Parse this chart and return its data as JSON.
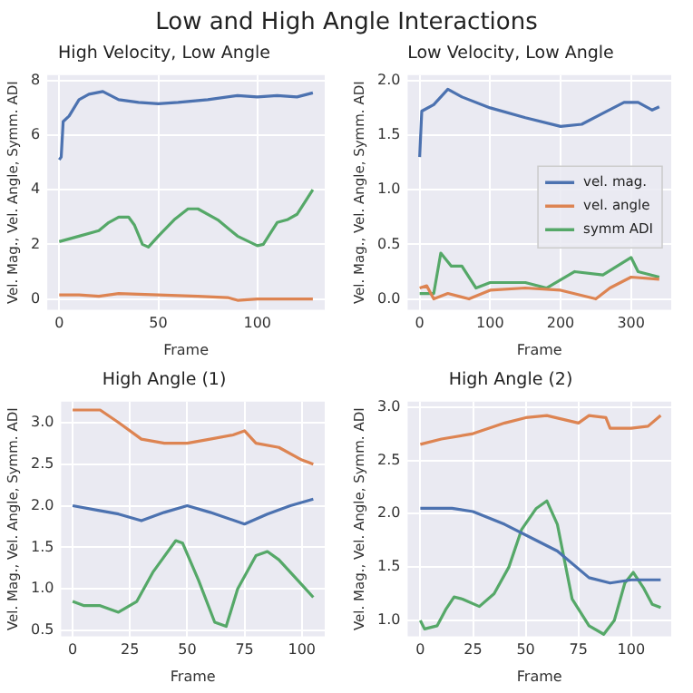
{
  "chart_data": [
    {
      "type": "line",
      "title": "High Velocity, Low Angle",
      "xlabel": "Frame",
      "ylabel": "Vel. Mag., Vel. Angle, Symm. ADI",
      "annotations": [
        "Low and High Angle Interactions"
      ],
      "xlim": [
        -6,
        134
      ],
      "xticks": [
        0,
        50,
        100
      ],
      "ylim": [
        -0.4,
        8.2
      ],
      "yticks": [
        0,
        2,
        4,
        6,
        8
      ],
      "grid": true,
      "marker": "none",
      "line_style": "solid",
      "series": [
        {
          "color": "#4c72b0",
          "x": [
            0,
            1,
            2,
            5,
            10,
            15,
            22,
            30,
            40,
            50,
            60,
            75,
            90,
            100,
            110,
            120,
            128
          ],
          "values": [
            5.1,
            5.2,
            6.5,
            6.7,
            7.3,
            7.5,
            7.6,
            7.3,
            7.2,
            7.15,
            7.2,
            7.3,
            7.45,
            7.4,
            7.45,
            7.4,
            7.55
          ]
        },
        {
          "color": "#dd8452",
          "x": [
            0,
            10,
            20,
            30,
            50,
            70,
            85,
            90,
            100,
            128
          ],
          "values": [
            0.15,
            0.15,
            0.1,
            0.2,
            0.15,
            0.1,
            0.05,
            -0.05,
            0,
            0
          ]
        },
        {
          "color": "#55a868",
          "x": [
            0,
            5,
            10,
            20,
            25,
            30,
            35,
            38,
            42,
            45,
            50,
            58,
            65,
            70,
            80,
            90,
            100,
            103,
            110,
            115,
            120,
            128
          ],
          "values": [
            2.1,
            2.2,
            2.3,
            2.5,
            2.8,
            3.0,
            3.0,
            2.7,
            2.0,
            1.9,
            2.3,
            2.9,
            3.3,
            3.3,
            2.9,
            2.3,
            1.95,
            2.0,
            2.8,
            2.9,
            3.1,
            4.0
          ]
        }
      ]
    },
    {
      "type": "line",
      "title": "Low Velocity, Low Angle",
      "xlabel": "Frame",
      "ylabel": "Vel. Mag., Vel. Angle, Symm. ADI",
      "xlim": [
        -17,
        357
      ],
      "xticks": [
        0,
        100,
        200,
        300
      ],
      "ylim": [
        -0.1,
        2.05
      ],
      "yticks": [
        {
          "value": 0,
          "label": "0.0"
        },
        0.5,
        {
          "value": 1,
          "label": "1.0"
        },
        1.5,
        {
          "value": 2,
          "label": "2.0"
        }
      ],
      "grid": true,
      "legend": "right",
      "marker": "none",
      "line_style": "solid",
      "series": [
        {
          "name": "vel. mag.",
          "color": "#4c72b0",
          "x": [
            0,
            3,
            20,
            40,
            60,
            100,
            150,
            200,
            230,
            260,
            290,
            310,
            330,
            340
          ],
          "values": [
            1.3,
            1.72,
            1.78,
            1.92,
            1.85,
            1.75,
            1.66,
            1.58,
            1.6,
            1.7,
            1.8,
            1.8,
            1.73,
            1.76
          ]
        },
        {
          "name": "vel. angle",
          "color": "#dd8452",
          "x": [
            0,
            10,
            20,
            40,
            70,
            100,
            150,
            200,
            250,
            270,
            300,
            340
          ],
          "values": [
            0.1,
            0.12,
            0.0,
            0.05,
            0.0,
            0.08,
            0.1,
            0.08,
            0.0,
            0.1,
            0.2,
            0.18
          ]
        },
        {
          "name": "symm ADI",
          "color": "#55a868",
          "x": [
            0,
            20,
            30,
            45,
            60,
            80,
            100,
            150,
            180,
            220,
            260,
            300,
            310,
            340
          ],
          "values": [
            0.05,
            0.05,
            0.42,
            0.3,
            0.3,
            0.1,
            0.15,
            0.15,
            0.1,
            0.25,
            0.22,
            0.38,
            0.25,
            0.2
          ]
        }
      ]
    },
    {
      "type": "line",
      "title": "High Angle (1)",
      "xlabel": "Frame",
      "ylabel": "Vel. Mag., Vel. Angle, Symm. ADI",
      "xlim": [
        -5,
        110
      ],
      "xticks": [
        0,
        25,
        50,
        75,
        100
      ],
      "ylim": [
        0.43,
        3.25
      ],
      "yticks": [
        0.5,
        {
          "value": 1,
          "label": "1.0"
        },
        1.5,
        {
          "value": 2,
          "label": "2.0"
        },
        2.5,
        {
          "value": 3,
          "label": "3.0"
        }
      ],
      "grid": true,
      "marker": "none",
      "line_style": "solid",
      "series": [
        {
          "color": "#4c72b0",
          "x": [
            0,
            10,
            20,
            30,
            40,
            50,
            60,
            75,
            85,
            95,
            105
          ],
          "values": [
            2.0,
            1.95,
            1.9,
            1.82,
            1.92,
            2.0,
            1.92,
            1.78,
            1.9,
            2.0,
            2.08
          ]
        },
        {
          "color": "#dd8452",
          "x": [
            0,
            12,
            20,
            30,
            40,
            50,
            60,
            70,
            75,
            80,
            90,
            100,
            105
          ],
          "values": [
            3.15,
            3.15,
            3.0,
            2.8,
            2.75,
            2.75,
            2.8,
            2.85,
            2.9,
            2.75,
            2.7,
            2.55,
            2.5
          ]
        },
        {
          "color": "#55a868",
          "x": [
            0,
            5,
            12,
            20,
            28,
            35,
            45,
            48,
            55,
            62,
            67,
            72,
            80,
            85,
            90,
            100,
            105
          ],
          "values": [
            0.85,
            0.8,
            0.8,
            0.72,
            0.85,
            1.2,
            1.58,
            1.55,
            1.1,
            0.6,
            0.55,
            1.0,
            1.4,
            1.45,
            1.35,
            1.05,
            0.9
          ]
        }
      ]
    },
    {
      "type": "line",
      "title": "High Angle (2)",
      "xlabel": "Frame",
      "ylabel": "Vel. Mag., Vel. Angle, Symm. ADI",
      "xlim": [
        -6,
        119
      ],
      "xticks": [
        0,
        25,
        50,
        75,
        100
      ],
      "ylim": [
        0.85,
        3.05
      ],
      "yticks": [
        {
          "value": 1,
          "label": "1.0"
        },
        1.5,
        {
          "value": 2,
          "label": "2.0"
        },
        2.5,
        {
          "value": 3,
          "label": "3.0"
        }
      ],
      "grid": true,
      "marker": "none",
      "line_style": "solid",
      "series": [
        {
          "color": "#4c72b0",
          "x": [
            0,
            15,
            25,
            40,
            55,
            65,
            80,
            90,
            100,
            114
          ],
          "values": [
            2.05,
            2.05,
            2.02,
            1.9,
            1.75,
            1.65,
            1.4,
            1.35,
            1.38,
            1.38
          ]
        },
        {
          "color": "#dd8452",
          "x": [
            0,
            10,
            25,
            40,
            50,
            60,
            75,
            80,
            88,
            90,
            100,
            108,
            114
          ],
          "values": [
            2.65,
            2.7,
            2.75,
            2.85,
            2.9,
            2.92,
            2.85,
            2.92,
            2.9,
            2.8,
            2.8,
            2.82,
            2.92
          ]
        },
        {
          "color": "#55a868",
          "x": [
            0,
            2,
            8,
            12,
            16,
            20,
            28,
            35,
            42,
            48,
            55,
            60,
            65,
            72,
            80,
            87,
            92,
            97,
            101,
            106,
            110,
            114
          ],
          "values": [
            1.0,
            0.92,
            0.95,
            1.1,
            1.22,
            1.2,
            1.13,
            1.25,
            1.5,
            1.85,
            2.05,
            2.12,
            1.9,
            1.2,
            0.95,
            0.87,
            1.0,
            1.35,
            1.45,
            1.3,
            1.15,
            1.12
          ]
        }
      ]
    }
  ]
}
